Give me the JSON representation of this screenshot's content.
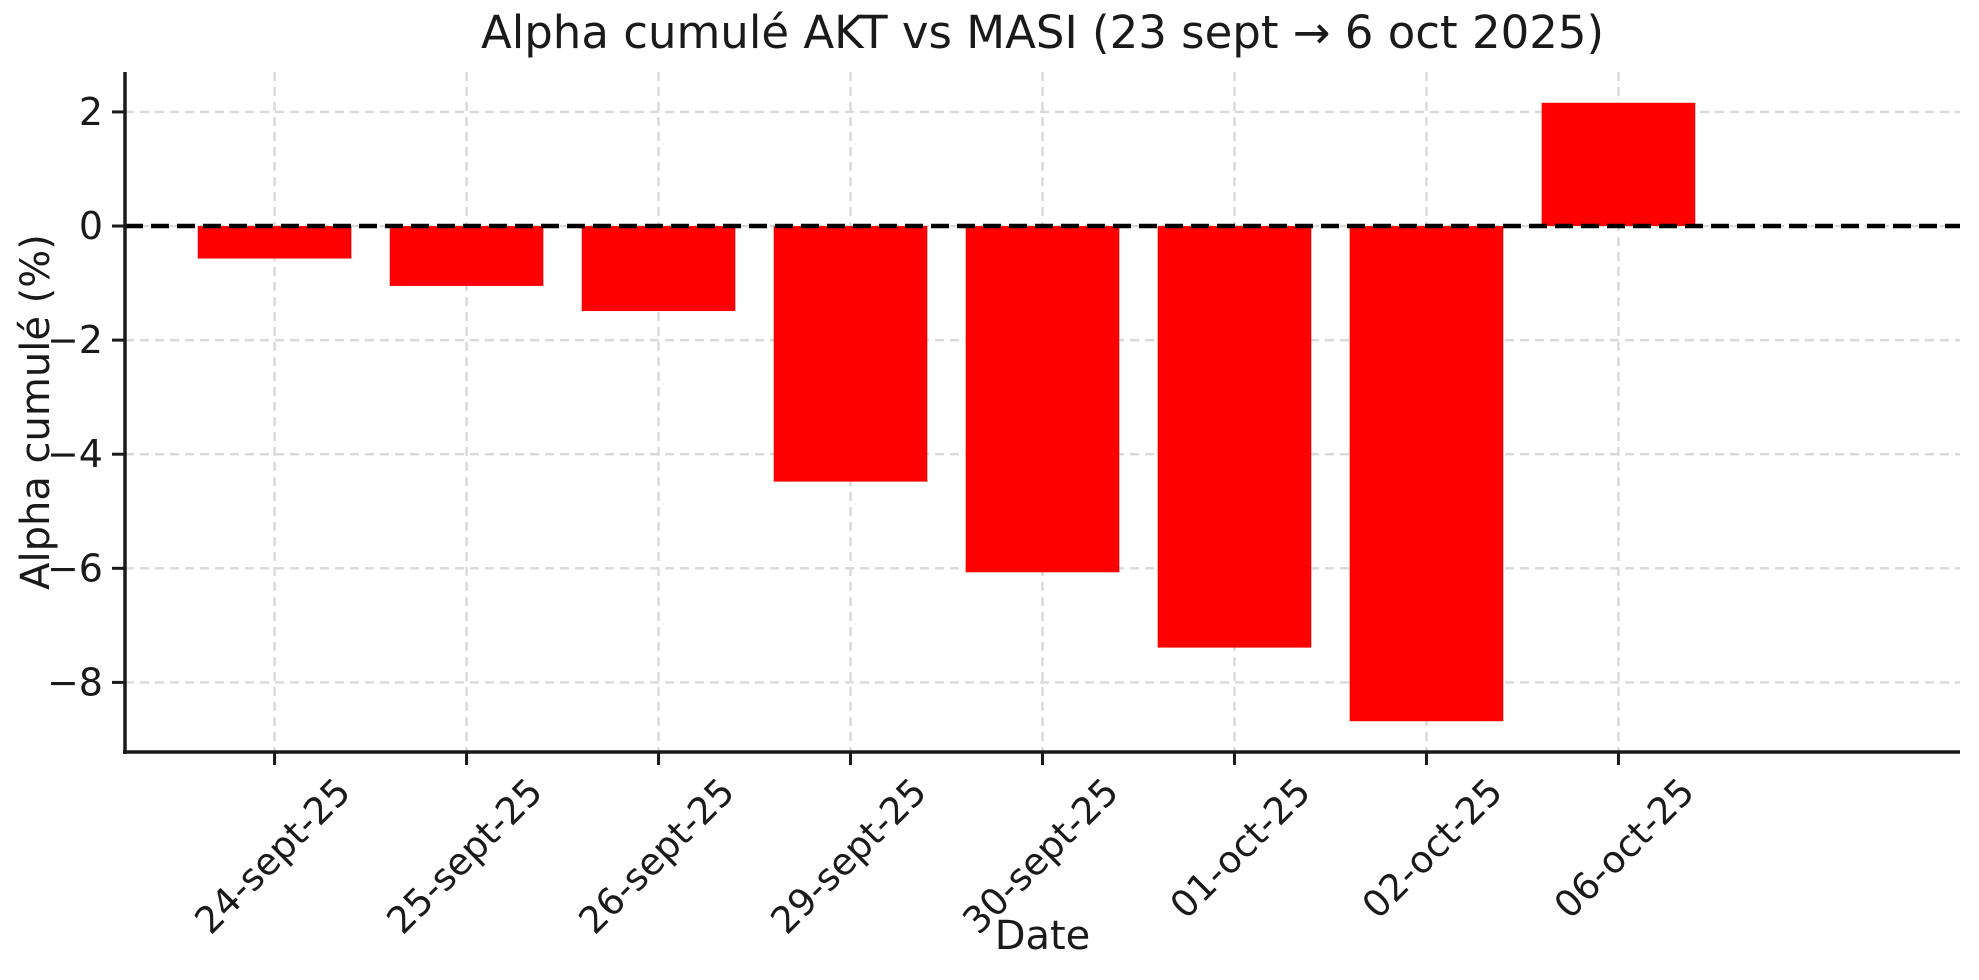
{
  "chart_data": {
    "type": "bar",
    "title": "Alpha cumulé AKT vs MASI (23 sept → 6 oct 2025)",
    "xlabel": "Date",
    "ylabel": "Alpha cumulé (%)",
    "categories": [
      "24-sept-25",
      "25-sept-25",
      "26-sept-25",
      "29-sept-25",
      "30-sept-25",
      "01-oct-25",
      "02-oct-25",
      "06-oct-25"
    ],
    "values": [
      -0.57,
      -1.05,
      -1.49,
      -4.48,
      -6.07,
      -7.39,
      -8.68,
      2.16
    ],
    "yticks": [
      2,
      0,
      -2,
      -4,
      -6,
      -8
    ],
    "ylim": [
      -9.22,
      2.7
    ],
    "bar_color": "#ff0000",
    "background_color": "#ffffff",
    "axis_color": "#1a1a1a",
    "grid": {
      "visible": true,
      "style": "dashed",
      "color": "#d9d9d9"
    },
    "zero_line": {
      "y": 0,
      "style": "dashed",
      "color": "#000000"
    },
    "x_tick_label_rotation_deg": 45,
    "legend": null
  }
}
